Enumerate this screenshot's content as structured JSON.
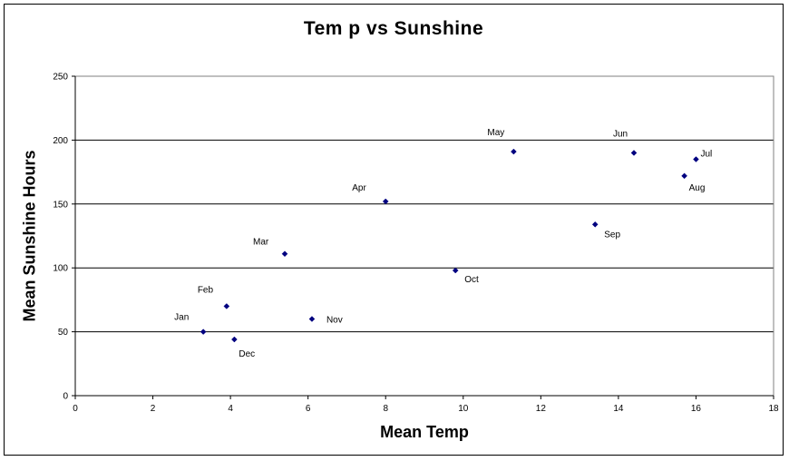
{
  "chart_data": {
    "type": "scatter",
    "title": "Tem p vs Sunshine",
    "xlabel": "Mean Temp",
    "ylabel": "Mean Sunshine Hours",
    "xlim": [
      0,
      18
    ],
    "ylim": [
      0,
      250
    ],
    "x_ticks": [
      0,
      2,
      4,
      6,
      8,
      10,
      12,
      14,
      16,
      18
    ],
    "y_ticks": [
      0,
      50,
      100,
      150,
      200,
      250
    ],
    "grid": "horizontal major gridlines",
    "legend": "none",
    "marker_color": "#000080",
    "points": [
      {
        "label": "Jan",
        "x": 3.3,
        "y": 50
      },
      {
        "label": "Feb",
        "x": 3.9,
        "y": 70
      },
      {
        "label": "Mar",
        "x": 5.4,
        "y": 111
      },
      {
        "label": "Apr",
        "x": 8.0,
        "y": 152
      },
      {
        "label": "May",
        "x": 11.3,
        "y": 191
      },
      {
        "label": "Jun",
        "x": 14.4,
        "y": 190
      },
      {
        "label": "Jul",
        "x": 16.0,
        "y": 185
      },
      {
        "label": "Aug",
        "x": 15.7,
        "y": 172
      },
      {
        "label": "Sep",
        "x": 13.4,
        "y": 134
      },
      {
        "label": "Oct",
        "x": 9.8,
        "y": 98
      },
      {
        "label": "Nov",
        "x": 6.1,
        "y": 60
      },
      {
        "label": "Dec",
        "x": 4.1,
        "y": 44
      }
    ]
  }
}
